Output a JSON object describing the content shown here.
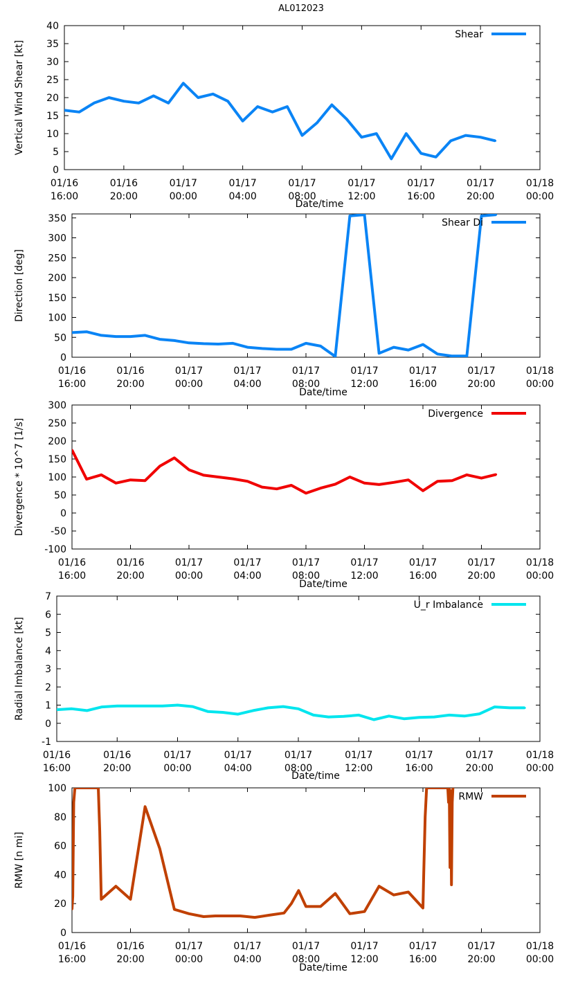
{
  "page_title": "AL012023",
  "chart_data": [
    {
      "type": "line",
      "id": "shear",
      "title": "AL012023",
      "xlabel": "Date/time",
      "ylabel": "Vertical Wind Shear [kt]",
      "legend": "Shear",
      "legend_position": "top-right",
      "color": "#0a84f5",
      "xlim": [
        0,
        32
      ],
      "ylim": [
        0,
        40
      ],
      "yticks": [
        0,
        5,
        10,
        15,
        20,
        25,
        30,
        35,
        40
      ],
      "x_tick_labels": [
        [
          "01/16",
          "16:00"
        ],
        [
          "01/16",
          "20:00"
        ],
        [
          "01/17",
          "00:00"
        ],
        [
          "01/17",
          "04:00"
        ],
        [
          "01/17",
          "08:00"
        ],
        [
          "01/17",
          "12:00"
        ],
        [
          "01/17",
          "16:00"
        ],
        [
          "01/17",
          "20:00"
        ],
        [
          "01/18",
          "00:00"
        ]
      ],
      "x": [
        0,
        1,
        2,
        3,
        4,
        5,
        6,
        7,
        8,
        9,
        10,
        11,
        12,
        13,
        14,
        15,
        16,
        17,
        18,
        19,
        20,
        21,
        22,
        23,
        24,
        25,
        26,
        27,
        28,
        29
      ],
      "values": [
        16.5,
        16,
        18.5,
        20,
        19,
        18.5,
        20.5,
        18.5,
        24,
        20,
        21,
        19,
        13.5,
        17.5,
        16,
        17.5,
        9.5,
        13,
        18,
        14,
        9,
        10,
        3,
        10,
        4.5,
        3.5,
        8,
        9.5,
        9,
        8
      ]
    },
    {
      "type": "line",
      "id": "shear-direction",
      "xlabel": "Date/time",
      "ylabel": "Direction [deg]",
      "legend": "Shear Di",
      "legend_position": "top-right",
      "color": "#0a84f5",
      "xlim": [
        0,
        32
      ],
      "ylim": [
        0,
        360
      ],
      "yticks": [
        0,
        50,
        100,
        150,
        200,
        250,
        300,
        350
      ],
      "x_tick_labels": [
        [
          "01/16",
          "16:00"
        ],
        [
          "01/16",
          "20:00"
        ],
        [
          "01/17",
          "00:00"
        ],
        [
          "01/17",
          "04:00"
        ],
        [
          "01/17",
          "08:00"
        ],
        [
          "01/17",
          "12:00"
        ],
        [
          "01/17",
          "16:00"
        ],
        [
          "01/17",
          "20:00"
        ],
        [
          "01/18",
          "00:00"
        ]
      ],
      "x": [
        0,
        1,
        2,
        3,
        4,
        5,
        6,
        7,
        8,
        9,
        10,
        11,
        12,
        13,
        14,
        15,
        16,
        17,
        18,
        19,
        20,
        21,
        22,
        23,
        24,
        25,
        26,
        27,
        28,
        29
      ],
      "values": [
        62,
        64,
        55,
        52,
        52,
        55,
        45,
        42,
        36,
        34,
        33,
        35,
        25,
        22,
        20,
        20,
        35,
        28,
        2,
        355,
        358,
        10,
        25,
        18,
        32,
        8,
        3,
        3,
        355,
        358
      ]
    },
    {
      "type": "line",
      "id": "divergence",
      "xlabel": "Date/time",
      "ylabel": "Divergence * 10^7 [1/s]",
      "legend": "Divergence",
      "legend_position": "top-right",
      "color": "#f00000",
      "xlim": [
        0,
        32
      ],
      "ylim": [
        -100,
        300
      ],
      "yticks": [
        -100,
        -50,
        0,
        50,
        100,
        150,
        200,
        250,
        300
      ],
      "x_tick_labels": [
        [
          "01/16",
          "16:00"
        ],
        [
          "01/16",
          "20:00"
        ],
        [
          "01/17",
          "00:00"
        ],
        [
          "01/17",
          "04:00"
        ],
        [
          "01/17",
          "08:00"
        ],
        [
          "01/17",
          "12:00"
        ],
        [
          "01/17",
          "16:00"
        ],
        [
          "01/17",
          "20:00"
        ],
        [
          "01/18",
          "00:00"
        ]
      ],
      "x": [
        0,
        1,
        2,
        3,
        4,
        5,
        6,
        7,
        8,
        9,
        10,
        11,
        12,
        13,
        14,
        15,
        16,
        17,
        18,
        19,
        20,
        21,
        22,
        23,
        24,
        25,
        26,
        27,
        28,
        29
      ],
      "values": [
        175,
        94,
        106,
        83,
        92,
        90,
        130,
        153,
        120,
        105,
        100,
        95,
        88,
        72,
        67,
        77,
        55,
        69,
        80,
        100,
        83,
        79,
        85,
        92,
        62,
        88,
        90,
        106,
        97,
        107
      ]
    },
    {
      "type": "line",
      "id": "radial-imbalance",
      "xlabel": "Date/time",
      "ylabel": "Radial Imbalance [kt]",
      "legend": "U_r Imbalance",
      "legend_position": "top-right",
      "color": "#00e5ee",
      "xlim": [
        0,
        32
      ],
      "ylim": [
        -1,
        7
      ],
      "yticks": [
        -1,
        0,
        1,
        2,
        3,
        4,
        5,
        6,
        7
      ],
      "x_tick_labels": [
        [
          "01/16",
          "16:00"
        ],
        [
          "01/16",
          "20:00"
        ],
        [
          "01/17",
          "00:00"
        ],
        [
          "01/17",
          "04:00"
        ],
        [
          "01/17",
          "08:00"
        ],
        [
          "01/17",
          "12:00"
        ],
        [
          "01/17",
          "16:00"
        ],
        [
          "01/17",
          "20:00"
        ],
        [
          "01/18",
          "00:00"
        ]
      ],
      "x": [
        0,
        1,
        2,
        3,
        4,
        5,
        6,
        7,
        8,
        9,
        10,
        11,
        12,
        13,
        14,
        15,
        16,
        17,
        18,
        19,
        20,
        21,
        22,
        23,
        24,
        25,
        26,
        27,
        28,
        29,
        30,
        31
      ],
      "values": [
        0.75,
        0.8,
        0.7,
        0.9,
        0.95,
        0.95,
        0.95,
        0.95,
        1.0,
        0.92,
        0.65,
        0.6,
        0.5,
        0.7,
        0.85,
        0.92,
        0.8,
        0.45,
        0.35,
        0.38,
        0.45,
        0.2,
        0.4,
        0.25,
        0.32,
        0.35,
        0.45,
        0.4,
        0.52,
        0.9,
        0.85,
        0.85
      ]
    },
    {
      "type": "line",
      "id": "rmw",
      "xlabel": "Date/time",
      "ylabel": "RMW [n mi]",
      "legend": "RMW",
      "legend_position": "top-right",
      "color": "#c04000",
      "xlim": [
        0,
        32
      ],
      "ylim": [
        0,
        100
      ],
      "yticks": [
        0,
        20,
        40,
        60,
        80,
        100
      ],
      "x_tick_labels": [
        [
          "01/16",
          "16:00"
        ],
        [
          "01/16",
          "20:00"
        ],
        [
          "01/17",
          "00:00"
        ],
        [
          "01/17",
          "04:00"
        ],
        [
          "01/17",
          "08:00"
        ],
        [
          "01/17",
          "12:00"
        ],
        [
          "01/17",
          "16:00"
        ],
        [
          "01/17",
          "20:00"
        ],
        [
          "01/18",
          "00:00"
        ]
      ],
      "x": [
        0,
        0.05,
        0.12,
        0.2,
        0.3,
        1.8,
        1.9,
        2.0,
        3.0,
        4.0,
        5.0,
        6.0,
        7.0,
        8.0,
        9.0,
        9.8,
        10.5,
        11.5,
        12.5,
        13.5,
        14.5,
        15.0,
        15.5,
        16.0,
        17.0,
        18.0,
        19.0,
        20.0,
        21.0,
        22.0,
        23.0,
        24.0,
        24.05,
        24.15,
        24.25,
        24.35,
        25.7,
        25.75,
        25.8,
        25.85,
        25.9,
        25.95,
        26.0,
        26.05
      ],
      "values": [
        16,
        25,
        90,
        100,
        100,
        100,
        70,
        23,
        32,
        23,
        87,
        58,
        16,
        13,
        11,
        11.5,
        11.5,
        11.5,
        10.5,
        12,
        13.5,
        20,
        29,
        18,
        18,
        27,
        13,
        14.5,
        32,
        26,
        28,
        17,
        40,
        80,
        100,
        100,
        100,
        90,
        100,
        45,
        98,
        33,
        90,
        100
      ]
    }
  ]
}
